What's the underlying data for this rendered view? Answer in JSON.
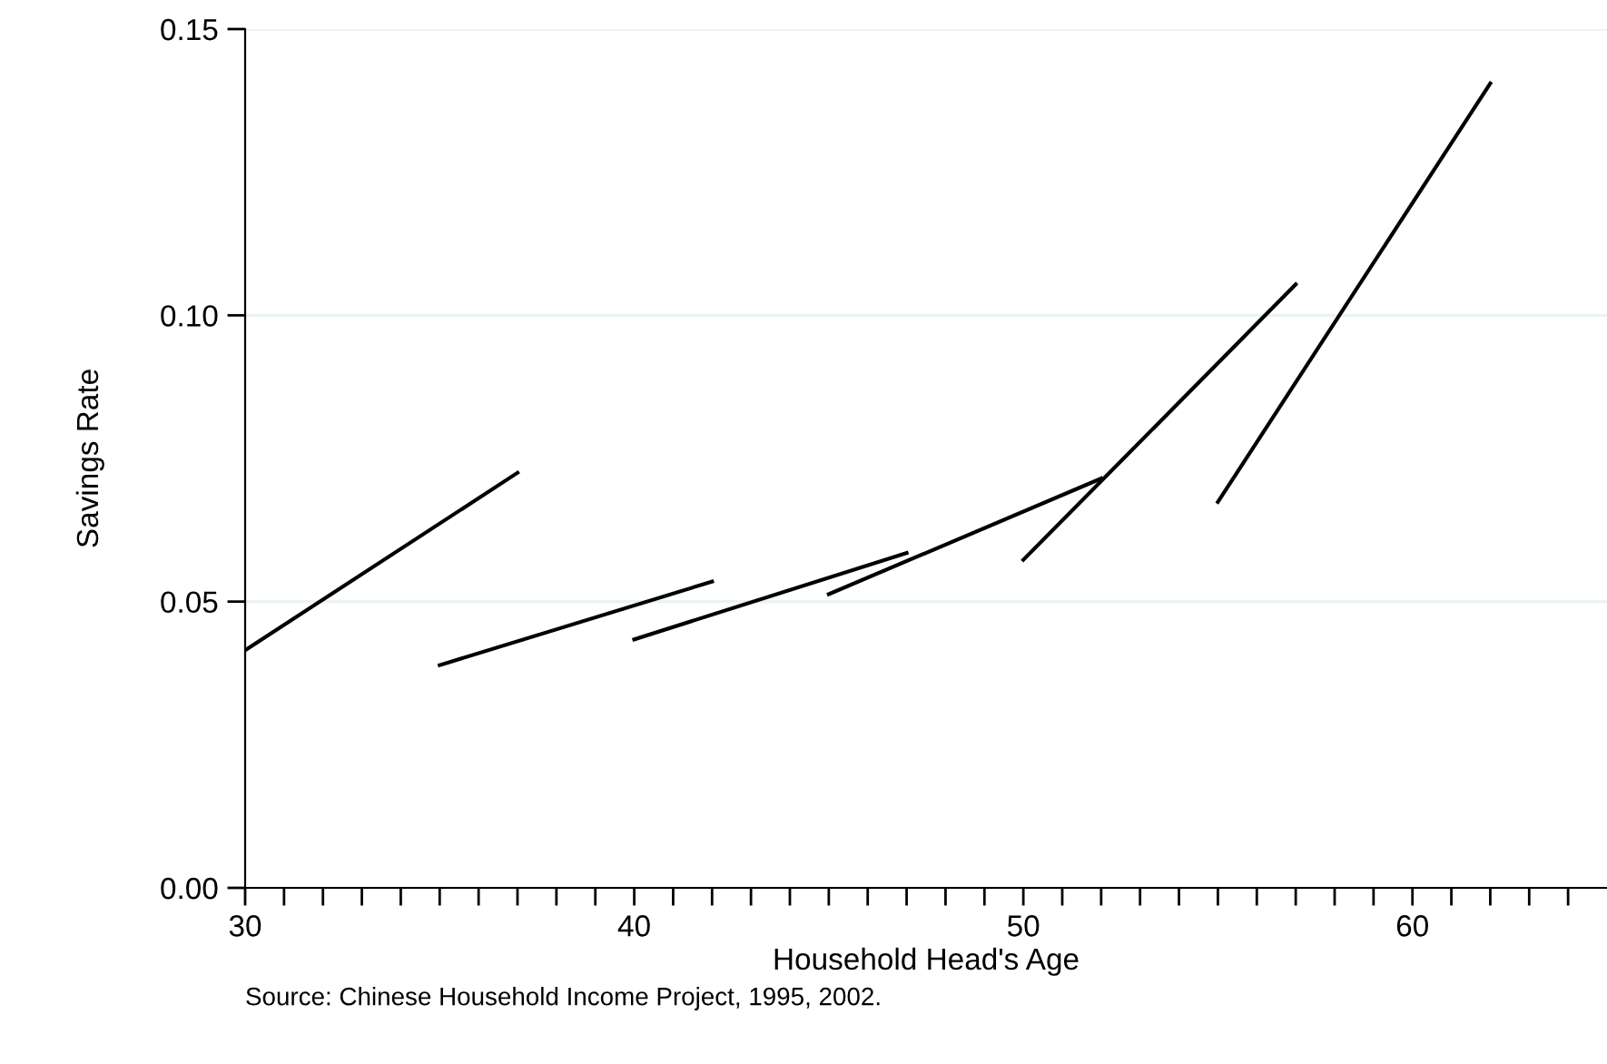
{
  "chart_data": {
    "type": "line",
    "xlabel": "Household Head's Age",
    "ylabel": "Savings Rate",
    "annotations": [
      "Source: Chinese Household Income Project, 1995, 2002."
    ],
    "series": [
      {
        "color": "#000000",
        "x": [
          30,
          37
        ],
        "values": [
          0.0415,
          0.0725
        ]
      },
      {
        "color": "#000000",
        "x": [
          35,
          42
        ],
        "values": [
          0.0389,
          0.0535
        ]
      },
      {
        "color": "#000000",
        "x": [
          40,
          47
        ],
        "values": [
          0.0434,
          0.0585
        ]
      },
      {
        "color": "#000000",
        "x": [
          45,
          52
        ],
        "values": [
          0.0513,
          0.0715
        ]
      },
      {
        "color": "#000000",
        "x": [
          50,
          57
        ],
        "values": [
          0.0573,
          0.1054
        ]
      },
      {
        "color": "#000000",
        "x": [
          55,
          62
        ],
        "values": [
          0.0674,
          0.1405
        ]
      }
    ],
    "xlim": [
      30,
      65
    ],
    "xticks": [
      30,
      {
        "value": 31,
        "label": null
      },
      {
        "value": 32,
        "label": null
      },
      {
        "value": 33,
        "label": null
      },
      {
        "value": 34,
        "label": null
      },
      {
        "value": 35,
        "label": null
      },
      {
        "value": 36,
        "label": null
      },
      {
        "value": 37,
        "label": null
      },
      {
        "value": 38,
        "label": null
      },
      {
        "value": 39,
        "label": null
      },
      40,
      {
        "value": 41,
        "label": null
      },
      {
        "value": 42,
        "label": null
      },
      {
        "value": 43,
        "label": null
      },
      {
        "value": 44,
        "label": null
      },
      {
        "value": 45,
        "label": null
      },
      {
        "value": 46,
        "label": null
      },
      {
        "value": 47,
        "label": null
      },
      {
        "value": 48,
        "label": null
      },
      {
        "value": 49,
        "label": null
      },
      50,
      {
        "value": 51,
        "label": null
      },
      {
        "value": 52,
        "label": null
      },
      {
        "value": 53,
        "label": null
      },
      {
        "value": 54,
        "label": null
      },
      {
        "value": 55,
        "label": null
      },
      {
        "value": 56,
        "label": null
      },
      {
        "value": 57,
        "label": null
      },
      {
        "value": 58,
        "label": null
      },
      {
        "value": 59,
        "label": null
      },
      60,
      {
        "value": 61,
        "label": null
      },
      {
        "value": 62,
        "label": null
      },
      {
        "value": 63,
        "label": null
      },
      {
        "value": 64,
        "label": null
      }
    ],
    "ylim": [
      0,
      0.15
    ],
    "yticks": [
      {
        "value": 0,
        "label": "0.00"
      },
      {
        "value": 0.05,
        "label": "0.05"
      },
      {
        "value": 0.1,
        "label": "0.10"
      },
      {
        "value": 0.15,
        "label": "0.15"
      }
    ],
    "grid": "y",
    "legend": false,
    "marker": "none",
    "line_style": "solid"
  }
}
